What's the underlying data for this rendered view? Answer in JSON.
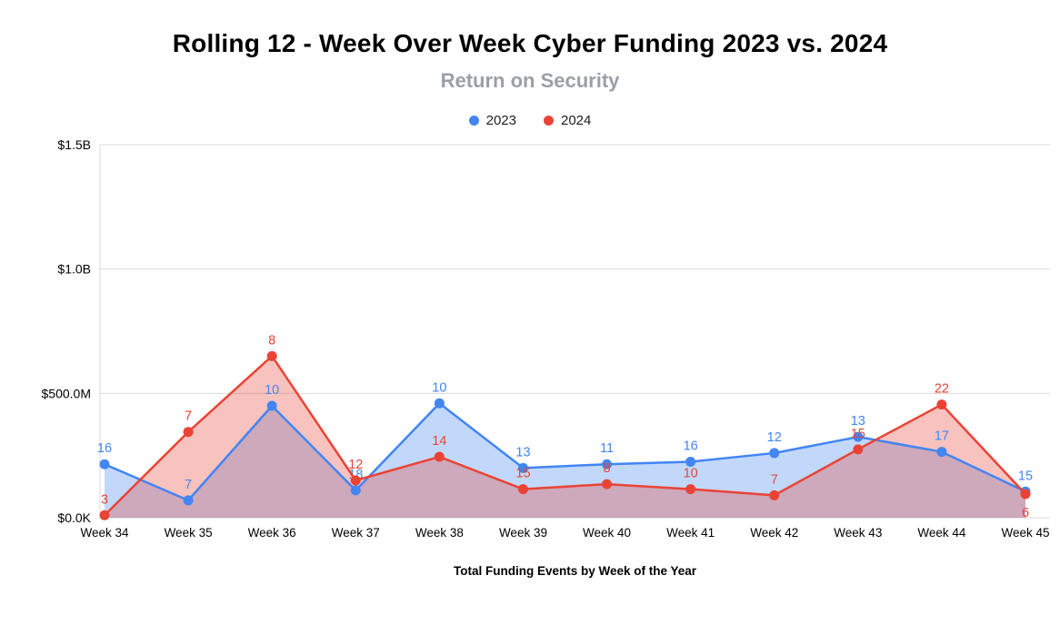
{
  "chart_data": {
    "type": "area",
    "title": "Rolling 12 - Week Over Week Cyber Funding 2023 vs. 2024",
    "subtitle": "Return on Security",
    "xlabel": "Total Funding Events by Week of the Year",
    "ylabel": "",
    "categories": [
      "Week 34",
      "Week 35",
      "Week 36",
      "Week 37",
      "Week 38",
      "Week 39",
      "Week 40",
      "Week 41",
      "Week 42",
      "Week 43",
      "Week 44",
      "Week 45"
    ],
    "y_ticks": [
      {
        "label": "$0.0K",
        "value": 0
      },
      {
        "label": "$500.0M",
        "value": 500
      },
      {
        "label": "$1.0B",
        "value": 1000
      },
      {
        "label": "$1.5B",
        "value": 1500
      }
    ],
    "ylim": [
      0,
      1500
    ],
    "y_unit": "USD millions (estimated from axis)",
    "grid": true,
    "legend_position": "top",
    "series": [
      {
        "name": "2023",
        "color": "#4285F4",
        "fill": "rgba(66,133,244,0.32)",
        "values_musd": [
          215,
          70,
          450,
          110,
          460,
          200,
          215,
          225,
          260,
          325,
          265,
          105
        ],
        "point_labels": [
          "16",
          "7",
          "10",
          "18",
          "10",
          "13",
          "11",
          "16",
          "12",
          "13",
          "17",
          "15"
        ],
        "label_positions": [
          "above",
          "above",
          "above",
          "above",
          "above",
          "above",
          "above",
          "above",
          "above",
          "above",
          "above",
          "above"
        ]
      },
      {
        "name": "2024",
        "color": "#EA4335",
        "fill": "rgba(234,67,53,0.32)",
        "values_musd": [
          10,
          345,
          650,
          150,
          245,
          115,
          135,
          115,
          90,
          275,
          455,
          95
        ],
        "point_labels": [
          "3",
          "7",
          "8",
          "12",
          "14",
          "15",
          "8",
          "10",
          "7",
          "15",
          "22",
          "6"
        ],
        "label_positions": [
          "above",
          "above",
          "above",
          "above",
          "above",
          "above",
          "above",
          "above",
          "above",
          "above",
          "above",
          "below"
        ]
      }
    ]
  }
}
